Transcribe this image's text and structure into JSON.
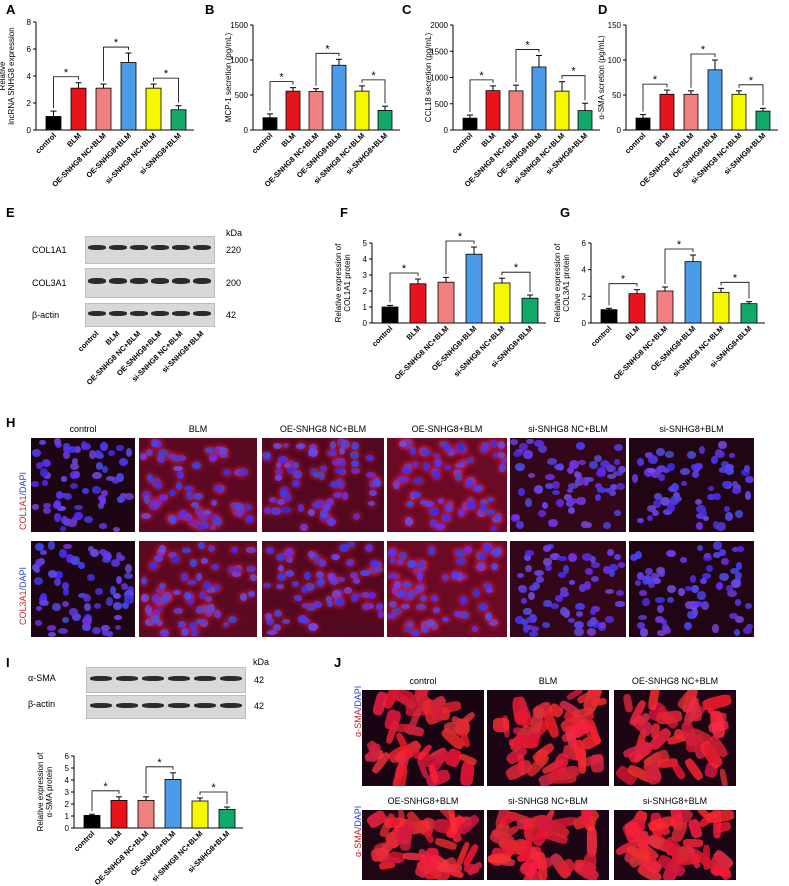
{
  "panels": {
    "A": "A",
    "B": "B",
    "C": "C",
    "D": "D",
    "E": "E",
    "F": "F",
    "G": "G",
    "H": "H",
    "I": "I",
    "J": "J"
  },
  "groups": [
    "control",
    "BLM",
    "OE-SNHG8 NC+BLM",
    "OE-SNHG8+BLM",
    "si-SNHG8 NC+BLM",
    "si-SNHG8+BLM"
  ],
  "colors": [
    "#000000",
    "#e8141b",
    "#f08080",
    "#4a9be8",
    "#f7f700",
    "#12a86a"
  ],
  "star": "*",
  "blotE": {
    "kda_header": "kDa",
    "rows": [
      {
        "label": "COL1A1",
        "kda": "220"
      },
      {
        "label": "COL3A1",
        "kda": "200"
      },
      {
        "label": "β-actin",
        "kda": "42"
      }
    ]
  },
  "blotI": {
    "kda_header": "kDa",
    "rows": [
      {
        "label": "α-SMA",
        "kda": "42"
      },
      {
        "label": "β-actin",
        "kda": "42"
      }
    ]
  },
  "panelH": {
    "row_labels": [
      {
        "red": "COL1A1",
        "sep": "/",
        "blue": "DAPI"
      },
      {
        "red": "COL3A1",
        "sep": "/",
        "blue": "DAPI"
      }
    ]
  },
  "panelJ": {
    "titles": [
      "control",
      "BLM",
      "OE-SNHG8 NC+BLM",
      "OE-SNHG8+BLM",
      "si-SNHG8 NC+BLM",
      "si-SNHG8+BLM"
    ],
    "row_label": {
      "red": "α-SMA",
      "sep": "/",
      "blue": "DAPI"
    }
  },
  "chart_data": [
    {
      "panel": "A",
      "type": "bar",
      "ylabel": "Relative\nlncRNA SNHG8 expression",
      "ylim": [
        0,
        8
      ],
      "yticks": [
        0,
        2,
        4,
        6,
        8
      ],
      "categories": [
        "control",
        "BLM",
        "OE-SNHG8 NC+BLM",
        "OE-SNHG8+BLM",
        "si-SNHG8 NC+BLM",
        "si-SNHG8+BLM"
      ],
      "values": [
        1.0,
        3.1,
        3.1,
        5.0,
        3.1,
        1.5
      ],
      "errors": [
        0.4,
        0.4,
        0.3,
        0.7,
        0.3,
        0.3
      ],
      "sig": [
        [
          0,
          1
        ],
        [
          2,
          3
        ],
        [
          4,
          5
        ]
      ]
    },
    {
      "panel": "B",
      "type": "bar",
      "ylabel": "MCP-1 secretion (pg/mL)",
      "ylim": [
        0,
        1500
      ],
      "yticks": [
        0,
        500,
        1000,
        1500
      ],
      "categories": [
        "control",
        "BLM",
        "OE-SNHG8 NC+BLM",
        "OE-SNHG8+BLM",
        "si-SNHG8 NC+BLM",
        "si-SNHG8+BLM"
      ],
      "values": [
        175,
        555,
        550,
        925,
        555,
        280
      ],
      "errors": [
        55,
        50,
        40,
        85,
        75,
        60
      ],
      "sig": [
        [
          0,
          1
        ],
        [
          2,
          3
        ],
        [
          4,
          5
        ]
      ]
    },
    {
      "panel": "C",
      "type": "bar",
      "ylabel": "CCL18 secretion (pg/mL)",
      "ylim": [
        0,
        2000
      ],
      "yticks": [
        0,
        500,
        1000,
        1500,
        2000
      ],
      "categories": [
        "control",
        "BLM",
        "OE-SNHG8 NC+BLM",
        "OE-SNHG8+BLM",
        "si-SNHG8 NC+BLM",
        "si-SNHG8+BLM"
      ],
      "values": [
        225,
        750,
        745,
        1200,
        740,
        370
      ],
      "errors": [
        60,
        90,
        110,
        220,
        180,
        140
      ],
      "sig": [
        [
          0,
          1
        ],
        [
          2,
          3
        ],
        [
          4,
          5
        ]
      ]
    },
    {
      "panel": "D",
      "type": "bar",
      "ylabel": "α-SMA scretion (pg/mL)",
      "ylim": [
        0,
        150
      ],
      "yticks": [
        0,
        50,
        100,
        150
      ],
      "categories": [
        "control",
        "BLM",
        "OE-SNHG8 NC+BLM",
        "OE-SNHG8+BLM",
        "si-SNHG8 NC+BLM",
        "si-SNHG8+BLM"
      ],
      "values": [
        17,
        51,
        51,
        86,
        51,
        27
      ],
      "errors": [
        5,
        6,
        5,
        14,
        5,
        4
      ],
      "sig": [
        [
          0,
          1
        ],
        [
          2,
          3
        ],
        [
          4,
          5
        ]
      ]
    },
    {
      "panel": "F",
      "type": "bar",
      "ylabel": "Relative expression of\nCOL1A1 protein",
      "ylim": [
        0,
        5
      ],
      "yticks": [
        0,
        1,
        2,
        3,
        4,
        5
      ],
      "categories": [
        "control",
        "BLM",
        "OE-SNHG8 NC+BLM",
        "OE-SNHG8+BLM",
        "si-SNHG8 NC+BLM",
        "si-SNHG8+BLM"
      ],
      "values": [
        1.0,
        2.45,
        2.55,
        4.3,
        2.5,
        1.55
      ],
      "errors": [
        0.1,
        0.3,
        0.3,
        0.45,
        0.3,
        0.2
      ],
      "sig": [
        [
          0,
          1
        ],
        [
          2,
          3
        ],
        [
          4,
          5
        ]
      ]
    },
    {
      "panel": "G",
      "type": "bar",
      "ylabel": "Relative expression of\nCOL3A1 protein",
      "ylim": [
        0,
        6
      ],
      "yticks": [
        0,
        2,
        4,
        6
      ],
      "categories": [
        "control",
        "BLM",
        "OE-SNHG8 NC+BLM",
        "OE-SNHG8+BLM",
        "si-SNHG8 NC+BLM",
        "si-SNHG8+BLM"
      ],
      "values": [
        1.0,
        2.2,
        2.4,
        4.6,
        2.3,
        1.45
      ],
      "errors": [
        0.1,
        0.3,
        0.3,
        0.5,
        0.3,
        0.15
      ],
      "sig": [
        [
          0,
          1
        ],
        [
          2,
          3
        ],
        [
          4,
          5
        ]
      ]
    },
    {
      "panel": "I",
      "type": "bar",
      "ylabel": "Relative expression of\nα-SMA protein",
      "ylim": [
        0,
        6
      ],
      "yticks": [
        0,
        1,
        2,
        3,
        4,
        5,
        6
      ],
      "categories": [
        "control",
        "BLM",
        "OE-SNHG8 NC+BLM",
        "OE-SNHG8+BLM",
        "si-SNHG8 NC+BLM",
        "si-SNHG8+BLM"
      ],
      "values": [
        1.05,
        2.3,
        2.3,
        4.05,
        2.25,
        1.55
      ],
      "errors": [
        0.1,
        0.3,
        0.3,
        0.55,
        0.25,
        0.2
      ],
      "sig": [
        [
          0,
          1
        ],
        [
          2,
          3
        ],
        [
          4,
          5
        ]
      ]
    }
  ]
}
